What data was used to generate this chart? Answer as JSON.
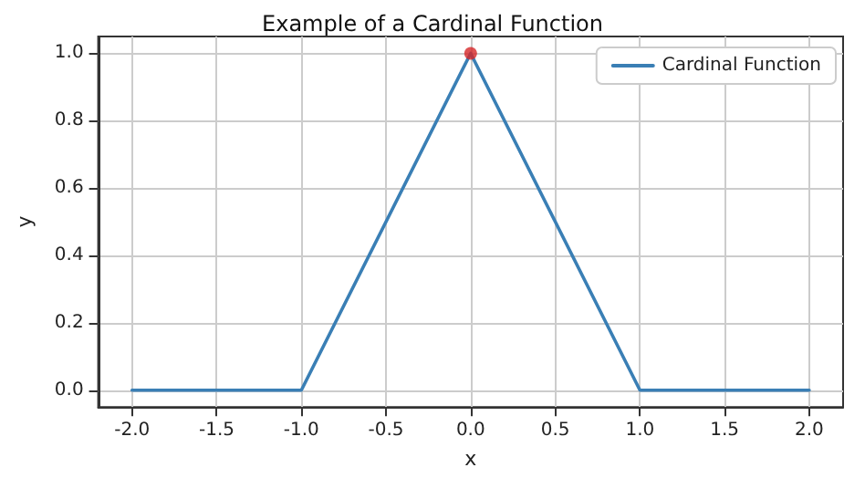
{
  "chart_data": {
    "type": "line",
    "title": "Example of a Cardinal Function",
    "xlabel": "x",
    "ylabel": "y",
    "series": [
      {
        "name": "Cardinal Function",
        "color": "#3a7fb5",
        "x": [
          -2,
          -1,
          0,
          1,
          2
        ],
        "values": [
          0,
          0,
          1,
          0,
          0
        ],
        "marker": "none"
      },
      {
        "type": "scatter",
        "color": "#d62728",
        "x": [
          0
        ],
        "values": [
          1
        ],
        "marker": "circle"
      }
    ],
    "xlim": [
      -2.2,
      2.2
    ],
    "ylim": [
      -0.05,
      1.05
    ],
    "xticks": [
      {
        "value": -2,
        "label": "-2.0"
      },
      -1.5,
      {
        "value": -1,
        "label": "-1.0"
      },
      -0.5,
      {
        "value": 0,
        "label": "0.0"
      },
      0.5,
      {
        "value": 1,
        "label": "1.0"
      },
      1.5,
      {
        "value": 2,
        "label": "2.0"
      }
    ],
    "yticks": [
      {
        "value": 0,
        "label": "0.0"
      },
      0.2,
      0.4,
      0.6,
      0.8,
      {
        "value": 1,
        "label": "1.0"
      }
    ],
    "grid": true,
    "legend": "top right"
  }
}
